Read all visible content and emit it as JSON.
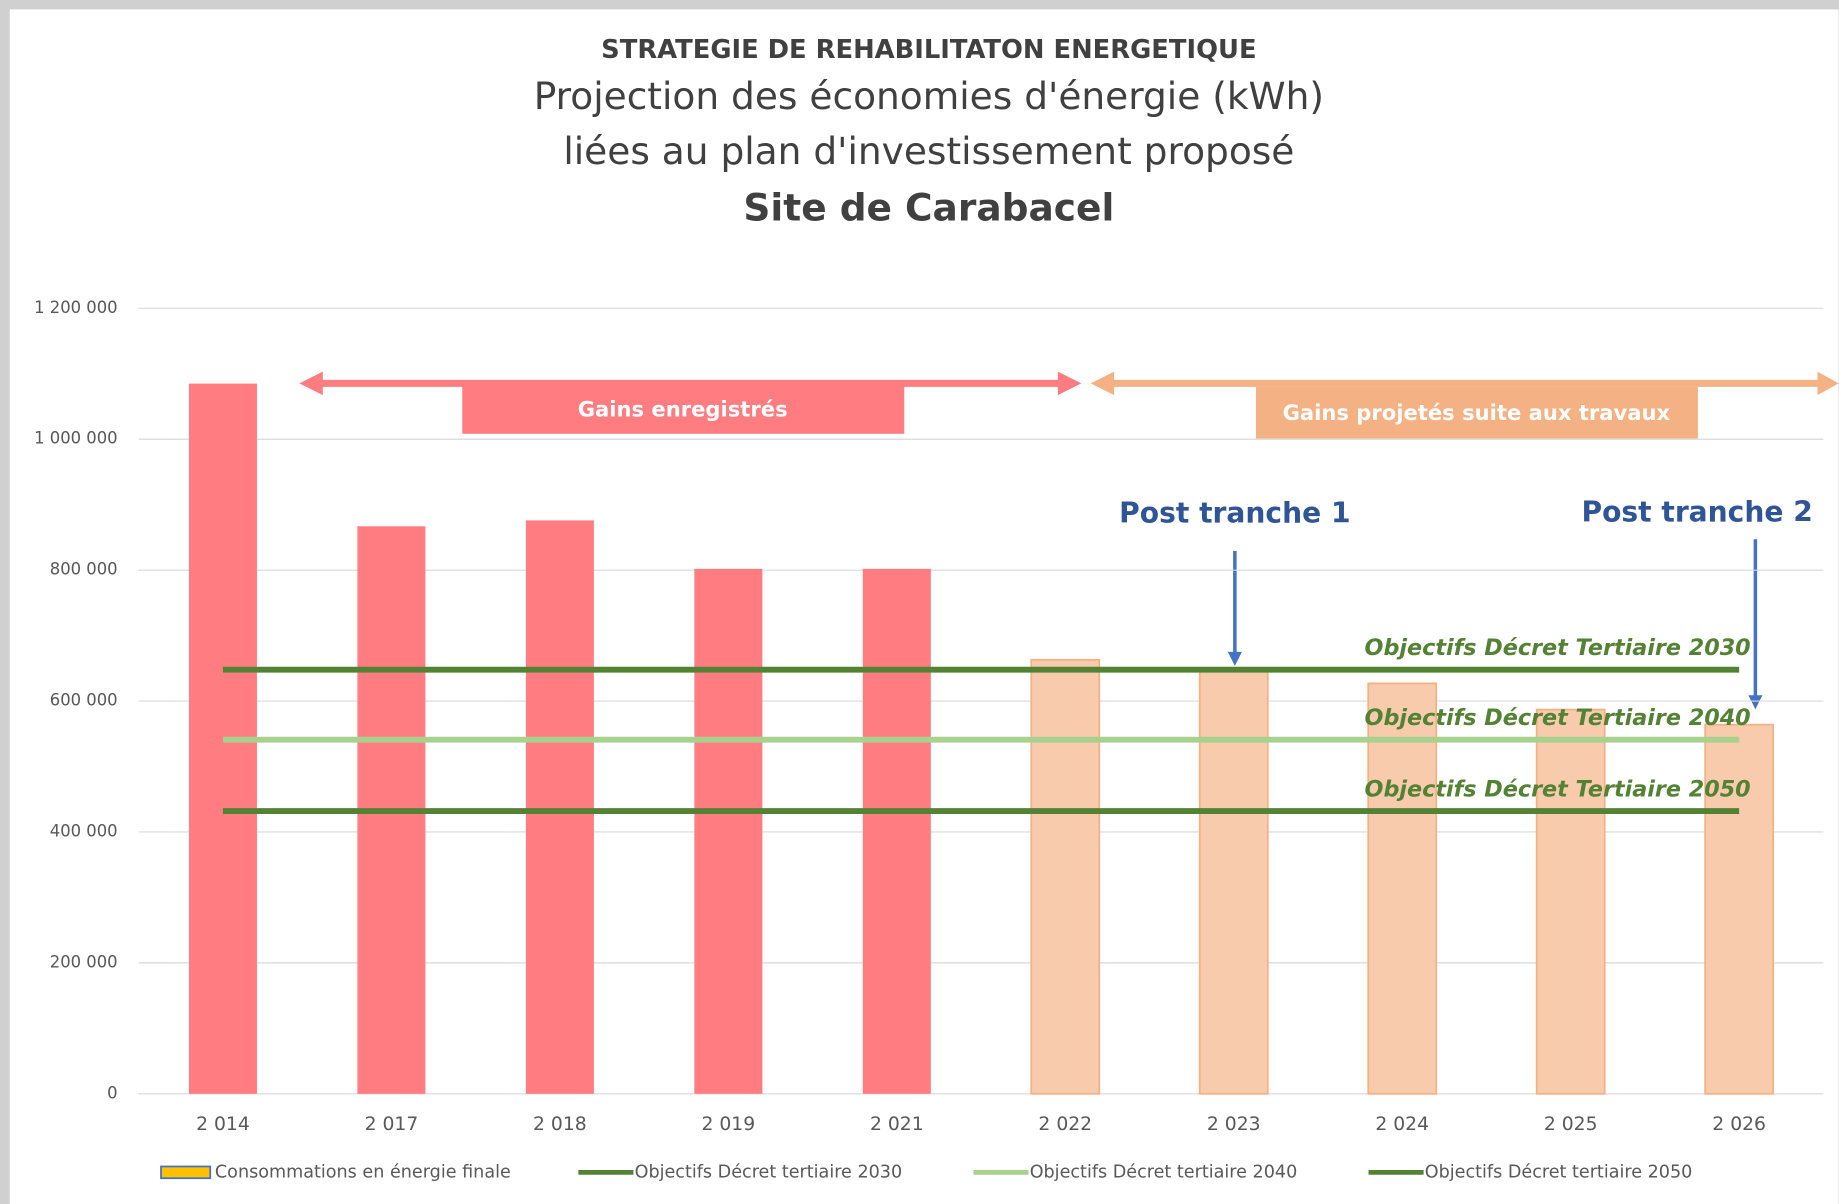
{
  "chart_data": {
    "type": "bar",
    "title": "STRATEGIE DE REHABILITATON ENERGETIQUE",
    "subtitle": [
      "Projection des économies d'énergie (kWh)",
      "liées au plan d'investissement proposé",
      "Site de Carabacel"
    ],
    "categories": [
      "2 014",
      "2 017",
      "2 018",
      "2 019",
      "2 021",
      "2 022",
      "2 023",
      "2 024",
      "2 025",
      "2 026"
    ],
    "series": [
      {
        "name": "Consommations en énergie finale",
        "type": "bar",
        "color": "#ffc000",
        "values": [
          1085000,
          867000,
          876000,
          802000,
          802000,
          663000,
          647000,
          627000,
          587000,
          564000
        ],
        "colors": [
          "#ff7c80",
          "#ff7c80",
          "#ff7c80",
          "#ff7c80",
          "#ff7c80",
          "#f8cbad",
          "#f8cbad",
          "#f8cbad",
          "#f8cbad",
          "#f8cbad"
        ]
      },
      {
        "name": "Objectifs Décret tertiaire  2030",
        "type": "line",
        "color": "#548235",
        "value": 648000,
        "label": "Objectifs Décret Tertiaire 2030"
      },
      {
        "name": "Objectifs Décret tertiaire  2040",
        "type": "line",
        "color": "#a9d18e",
        "value": 541000,
        "label": "Objectifs Décret Tertiaire 2040"
      },
      {
        "name": "Objectifs Décret tertiaire  2050",
        "type": "line",
        "color": "#548235",
        "value": 432000,
        "label": "Objectifs Décret Tertiaire 2050"
      }
    ],
    "ylim": [
      0,
      1200000
    ],
    "yticks": [
      0,
      {
        "value": 200000,
        "label": "200 000"
      },
      {
        "value": 400000,
        "label": "400 000"
      },
      {
        "value": 600000,
        "label": "600 000"
      },
      {
        "value": 800000,
        "label": "800 000"
      },
      {
        "value": 1000000,
        "label": "1 000 000"
      },
      {
        "value": 1200000,
        "label": "1 200 000"
      }
    ],
    "grid": true,
    "legend": "bottom",
    "annotations": [
      "Gains enregistrés",
      "Gains projetés suite aux travaux",
      "Post tranche 1",
      "Post tranche 2"
    ]
  }
}
